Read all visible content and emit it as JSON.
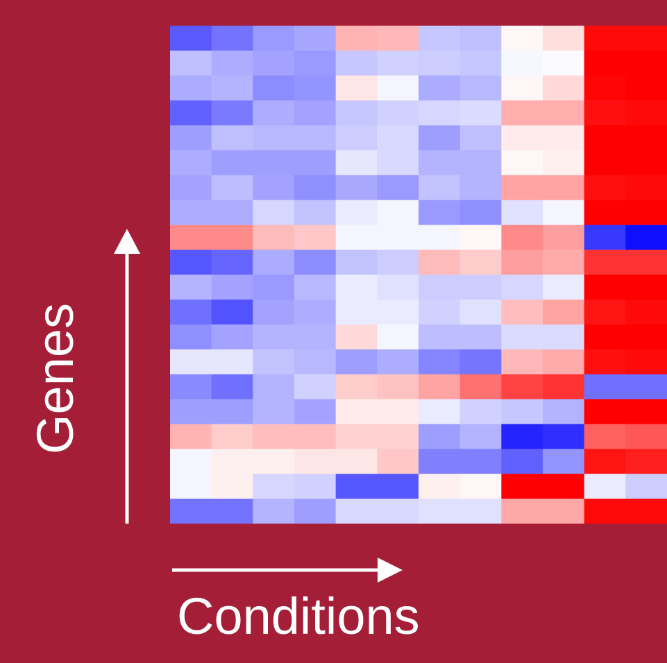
{
  "chart_data": {
    "type": "heatmap",
    "xlabel": "Conditions",
    "ylabel": "Genes",
    "value_range": [
      -1,
      1
    ],
    "colorscale": [
      "#0000ff",
      "#ffffff",
      "#ff0000"
    ],
    "values": [
      [
        -0.65,
        -0.55,
        -0.4,
        -0.35,
        0.3,
        0.28,
        -0.22,
        -0.25,
        0.03,
        0.13,
        0.96,
        0.96
      ],
      [
        -0.25,
        -0.32,
        -0.36,
        -0.4,
        -0.22,
        -0.18,
        -0.2,
        -0.22,
        -0.03,
        -0.02,
        1.0,
        1.0
      ],
      [
        -0.33,
        -0.3,
        -0.45,
        -0.42,
        0.1,
        -0.04,
        -0.33,
        -0.28,
        0.03,
        0.15,
        0.98,
        1.0
      ],
      [
        -0.62,
        -0.52,
        -0.32,
        -0.36,
        -0.22,
        -0.18,
        -0.16,
        -0.14,
        0.32,
        0.32,
        0.94,
        0.96
      ],
      [
        -0.38,
        -0.25,
        -0.28,
        -0.28,
        -0.2,
        -0.15,
        -0.38,
        -0.25,
        0.08,
        0.08,
        1.0,
        1.0
      ],
      [
        -0.32,
        -0.38,
        -0.38,
        -0.38,
        -0.1,
        -0.15,
        -0.3,
        -0.3,
        0.03,
        0.06,
        1.0,
        1.0
      ],
      [
        -0.36,
        -0.26,
        -0.36,
        -0.44,
        -0.34,
        -0.4,
        -0.24,
        -0.3,
        0.36,
        0.36,
        0.94,
        0.96
      ],
      [
        -0.32,
        -0.32,
        -0.16,
        -0.24,
        -0.08,
        -0.04,
        -0.4,
        -0.44,
        -0.12,
        -0.04,
        1.0,
        1.0
      ],
      [
        0.46,
        0.46,
        0.27,
        0.22,
        -0.04,
        -0.04,
        -0.04,
        0.03,
        0.46,
        0.38,
        -0.78,
        -0.94
      ],
      [
        -0.66,
        -0.6,
        -0.33,
        -0.45,
        -0.24,
        -0.2,
        0.27,
        0.2,
        0.38,
        0.33,
        0.8,
        0.8
      ],
      [
        -0.3,
        -0.36,
        -0.4,
        -0.28,
        -0.08,
        -0.12,
        -0.2,
        -0.2,
        -0.16,
        -0.08,
        1.0,
        1.0
      ],
      [
        -0.56,
        -0.68,
        -0.36,
        -0.32,
        -0.08,
        -0.08,
        -0.18,
        -0.12,
        0.26,
        0.36,
        0.92,
        0.96
      ],
      [
        -0.44,
        -0.36,
        -0.3,
        -0.3,
        0.15,
        -0.04,
        -0.26,
        -0.26,
        -0.14,
        -0.14,
        1.0,
        1.0
      ],
      [
        -0.1,
        -0.1,
        -0.24,
        -0.28,
        -0.38,
        -0.32,
        -0.48,
        -0.54,
        0.28,
        0.33,
        0.94,
        0.96
      ],
      [
        -0.46,
        -0.56,
        -0.3,
        -0.18,
        0.2,
        0.24,
        0.36,
        0.56,
        0.74,
        0.8,
        -0.56,
        -0.56
      ],
      [
        -0.38,
        -0.38,
        -0.3,
        -0.36,
        0.08,
        0.08,
        -0.08,
        -0.18,
        -0.22,
        -0.3,
        1.0,
        1.0
      ],
      [
        0.3,
        0.2,
        0.26,
        0.26,
        0.18,
        0.18,
        -0.38,
        -0.3,
        -0.86,
        -0.82,
        0.62,
        0.66
      ],
      [
        -0.04,
        0.06,
        0.06,
        0.1,
        0.1,
        0.22,
        -0.5,
        -0.5,
        -0.62,
        -0.42,
        0.92,
        0.88
      ],
      [
        -0.04,
        0.06,
        -0.16,
        -0.18,
        -0.66,
        -0.66,
        0.06,
        0.03,
        1.0,
        1.0,
        -0.08,
        -0.2
      ],
      [
        -0.55,
        -0.55,
        -0.3,
        -0.38,
        -0.15,
        -0.15,
        -0.12,
        -0.12,
        0.34,
        0.34,
        0.96,
        0.96
      ]
    ]
  }
}
